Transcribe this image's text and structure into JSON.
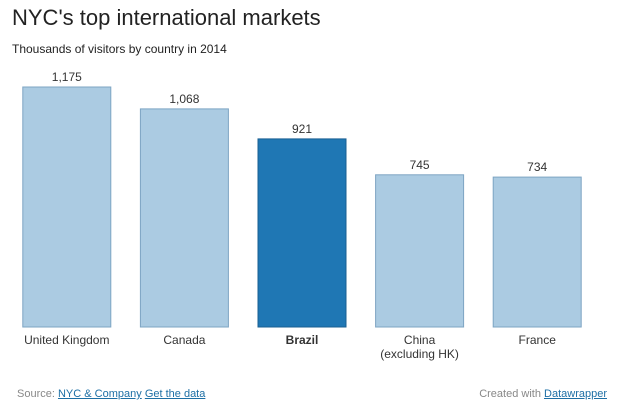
{
  "title": "NYC's top international markets",
  "subtitle": "Thousands of visitors by country in 2014",
  "footer": {
    "source_prefix": "Source:",
    "source_link": "NYC & Company",
    "data_link": "Get the data",
    "credit_prefix": "Created with",
    "credit_link": "Datawrapper",
    "link_color": "#1d6fa5"
  },
  "colors": {
    "default_bar": "#abcbe2",
    "default_bar_stroke": "#7da4c3",
    "highlight_bar": "#1f77b4",
    "highlight_bar_stroke": "#1a5f92"
  },
  "chart_data": {
    "type": "bar",
    "categories": [
      "United Kingdom",
      "Canada",
      "Brazil",
      "China (excluding HK)",
      "France"
    ],
    "category_lines": [
      [
        "United Kingdom"
      ],
      [
        "Canada"
      ],
      [
        "Brazil"
      ],
      [
        "China",
        "(excluding HK)"
      ],
      [
        "France"
      ]
    ],
    "values": [
      1175,
      1068,
      921,
      745,
      734
    ],
    "value_labels": [
      "1,175",
      "1,068",
      "921",
      "745",
      "734"
    ],
    "highlight": "Brazil",
    "title": "NYC's top international markets",
    "subtitle": "Thousands of visitors by country in 2014",
    "xlabel": "",
    "ylabel": "",
    "ylim": [
      0,
      1175
    ],
    "grid": false,
    "legend": "none"
  }
}
